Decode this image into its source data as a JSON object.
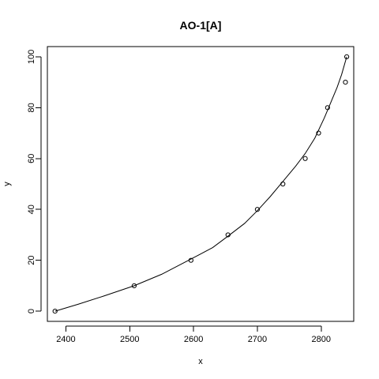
{
  "chart_data": {
    "type": "scatter",
    "title": "AO-1[A]",
    "xlabel": "x",
    "ylabel": "y",
    "xlim": [
      2371,
      2851
    ],
    "ylim": [
      -4,
      104
    ],
    "xticks": [
      2400,
      2500,
      2600,
      2700,
      2800
    ],
    "yticks": [
      0,
      20,
      40,
      60,
      80,
      100
    ],
    "grid": false,
    "points": [
      {
        "x": 2383,
        "y": 0
      },
      {
        "x": 2507,
        "y": 10
      },
      {
        "x": 2596,
        "y": 20
      },
      {
        "x": 2654,
        "y": 30
      },
      {
        "x": 2700,
        "y": 40
      },
      {
        "x": 2740,
        "y": 50
      },
      {
        "x": 2775,
        "y": 60
      },
      {
        "x": 2796,
        "y": 70
      },
      {
        "x": 2810,
        "y": 80
      },
      {
        "x": 2838,
        "y": 90
      },
      {
        "x": 2840,
        "y": 100
      }
    ],
    "fitted_curve": [
      {
        "x": 2383,
        "y": 0
      },
      {
        "x": 2420,
        "y": 2.8
      },
      {
        "x": 2460,
        "y": 6
      },
      {
        "x": 2507,
        "y": 10
      },
      {
        "x": 2550,
        "y": 14.5
      },
      {
        "x": 2596,
        "y": 20.5
      },
      {
        "x": 2630,
        "y": 25
      },
      {
        "x": 2654,
        "y": 29.5
      },
      {
        "x": 2680,
        "y": 34.5
      },
      {
        "x": 2700,
        "y": 39.5
      },
      {
        "x": 2720,
        "y": 45
      },
      {
        "x": 2740,
        "y": 51
      },
      {
        "x": 2760,
        "y": 57
      },
      {
        "x": 2775,
        "y": 62
      },
      {
        "x": 2790,
        "y": 68
      },
      {
        "x": 2805,
        "y": 76
      },
      {
        "x": 2815,
        "y": 82
      },
      {
        "x": 2825,
        "y": 88
      },
      {
        "x": 2832,
        "y": 93
      },
      {
        "x": 2840,
        "y": 100
      }
    ]
  }
}
